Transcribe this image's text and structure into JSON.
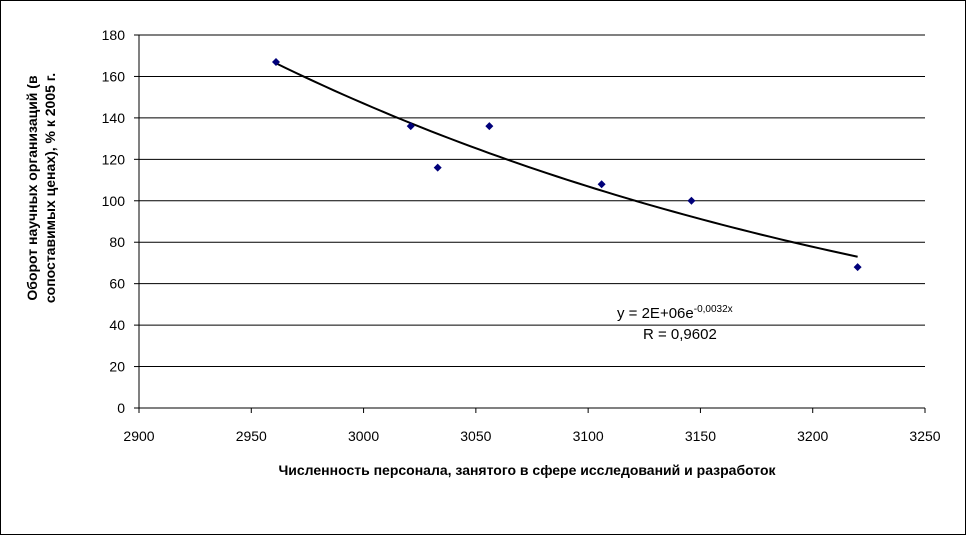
{
  "chart_data": {
    "type": "scatter",
    "xlabel": "Численность персонала, занятого в сфере исследований и разработок",
    "ylabel_line1": "Оборот научных организаций (в",
    "ylabel_line2": "сопоставимых ценах), % к 2005 г.",
    "xlim": [
      2900,
      3250
    ],
    "ylim": [
      0,
      180
    ],
    "x_ticks": [
      2900,
      2950,
      3000,
      3050,
      3100,
      3150,
      3200,
      3250
    ],
    "y_ticks": [
      0,
      20,
      40,
      60,
      80,
      100,
      120,
      140,
      160,
      180
    ],
    "grid": "horizontal",
    "series": [
      {
        "x": [
          2961,
          3021,
          3033,
          3056,
          3106,
          3146,
          3220
        ],
        "y": [
          167,
          136,
          116,
          136,
          108,
          100,
          68
        ],
        "marker": "diamond",
        "color": "#00007a"
      }
    ],
    "trendline": {
      "type": "exponential",
      "a": 2000000,
      "b": -0.0032,
      "x_range": [
        2961,
        3220
      ],
      "color": "#000000"
    },
    "annotation": {
      "equation_prefix": "y = 2E+06e",
      "equation_exponent": "-0,0032x",
      "r_value": "R = 0,9602"
    }
  }
}
